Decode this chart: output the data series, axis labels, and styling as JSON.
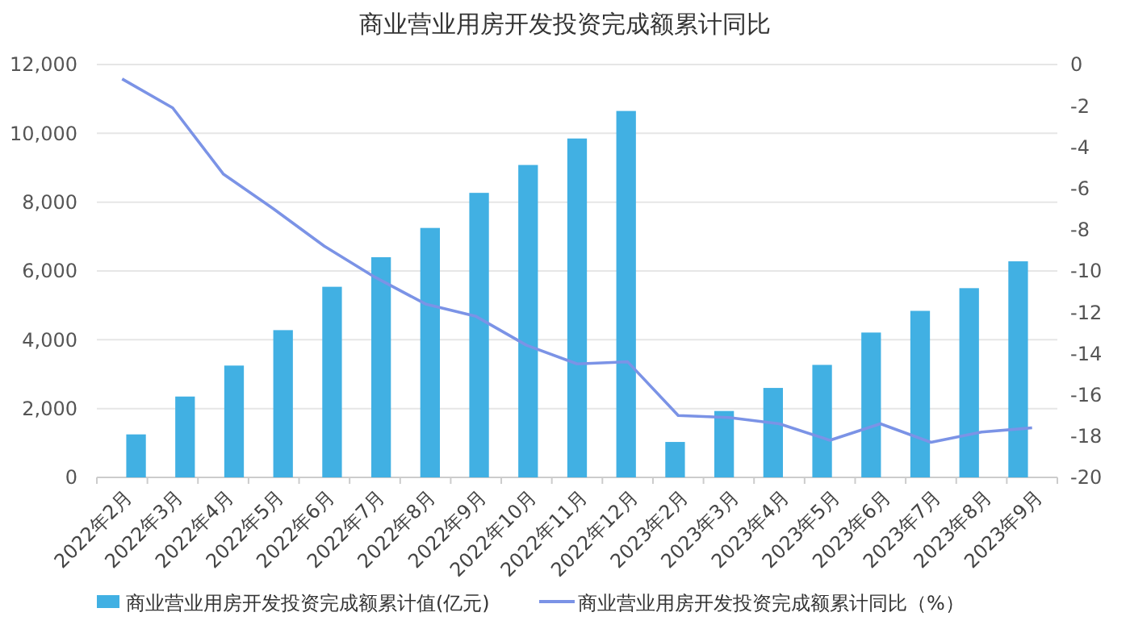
{
  "chart_data": {
    "type": "bar",
    "title": "商业营业用房开发投资完成额累计同比",
    "categories": [
      "2022年2月",
      "2022年3月",
      "2022年4月",
      "2022年5月",
      "2022年6月",
      "2022年7月",
      "2022年8月",
      "2022年9月",
      "2022年10月",
      "2022年11月",
      "2022年12月",
      "2023年2月",
      "2023年3月",
      "2023年4月",
      "2023年5月",
      "2023年6月",
      "2023年7月",
      "2023年8月",
      "2023年9月"
    ],
    "series": [
      {
        "name": "商业营业用房开发投资完成额累计值(亿元)",
        "color": "#41b0e3",
        "values": [
          1250,
          2350,
          3250,
          4280,
          5540,
          6400,
          7250,
          8270,
          9080,
          9850,
          10650,
          1030,
          1930,
          2600,
          3270,
          4210,
          4840,
          5500,
          6280
        ]
      },
      {
        "name": "商业营业用房开发投资完成额累计同比（%）",
        "type": "line",
        "axis": "y2",
        "color": "#7b93e6",
        "values": [
          -0.7,
          -2.1,
          -5.3,
          -7.0,
          -8.8,
          -10.3,
          -11.6,
          -12.2,
          -13.6,
          -14.5,
          -14.4,
          -17.0,
          -17.1,
          -17.4,
          -18.2,
          -17.4,
          -18.3,
          -17.8,
          -17.6
        ]
      }
    ],
    "ylim": [
      0,
      12000
    ],
    "yticks": [
      0,
      {
        "value": 2000,
        "label": "2,000"
      },
      {
        "value": 4000,
        "label": "4,000"
      },
      {
        "value": 6000,
        "label": "6,000"
      },
      {
        "value": 8000,
        "label": "8,000"
      },
      {
        "value": 10000,
        "label": "10,000"
      },
      {
        "value": 12000,
        "label": "12,000"
      }
    ],
    "y2lim": [
      -20,
      0
    ],
    "y2ticks": [
      0,
      -2,
      -4,
      -6,
      -8,
      -10,
      -12,
      -14,
      -16,
      -18,
      -20
    ],
    "grid": "y",
    "legend": "bottom",
    "marker": "none"
  }
}
